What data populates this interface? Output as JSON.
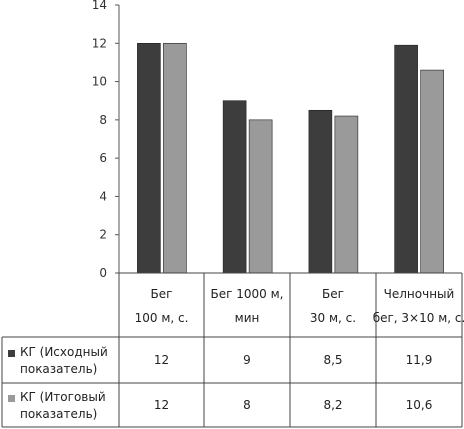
{
  "chart_data": {
    "type": "bar",
    "title": "",
    "xlabel": "",
    "ylabel": "",
    "ylim": [
      0,
      14
    ],
    "yticks": [
      0,
      2,
      4,
      6,
      8,
      10,
      12,
      14
    ],
    "grid": false,
    "legend": "bottom-left",
    "categories": [
      [
        "Бег",
        "100 м, с."
      ],
      [
        "Бег 1000 м,",
        "мин"
      ],
      [
        "Бег",
        "30 м, с."
      ],
      [
        "Челночный",
        "бег, 3×10 м, с."
      ]
    ],
    "series": [
      {
        "name": [
          "КГ (Исходный",
          "показатель)"
        ],
        "color": "#3d3d3d",
        "values": [
          12,
          9,
          8.5,
          11.9
        ],
        "labels": [
          "12",
          "9",
          "8,5",
          "11,9"
        ]
      },
      {
        "name": [
          "КГ (Итоговый",
          "показатель)"
        ],
        "color": "#9a9a9a",
        "values": [
          12,
          8,
          8.2,
          10.6
        ],
        "labels": [
          "12",
          "8",
          "8,2",
          "10,6"
        ]
      }
    ]
  }
}
